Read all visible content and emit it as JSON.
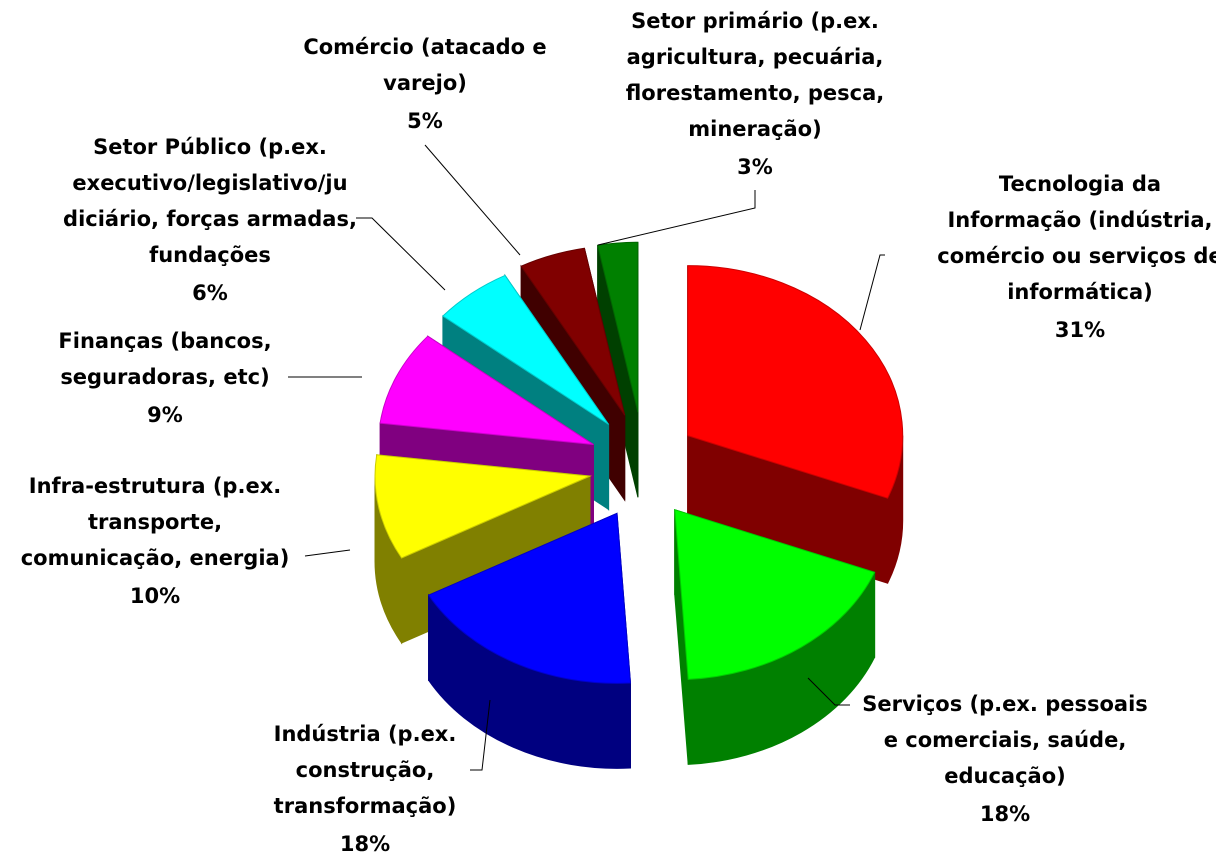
{
  "chart_data": {
    "type": "pie",
    "categories": [
      "Tecnologia da\nInformação (indústria,\ncomércio ou serviços de\ninformática)",
      "Serviços (p.ex. pessoais\ne comerciais, saúde,\neducação)",
      "Indústria (p.ex.\nconstrução,\ntransformação)",
      "Infra-estrutura (p.ex.\ntransporte,\ncomunicação, energia)",
      "Finanças (bancos,\nseguradoras, etc)",
      "Setor Público (p.ex.\nexecutivo/legislativo/ju\ndiciário, forças armadas,\nfundações",
      "Comércio (atacado e\nvarejo)",
      "Setor primário (p.ex.\nagricultura, pecuária,\nflorestamento, pesca,\nmineração)"
    ],
    "values": [
      31,
      18,
      18,
      10,
      9,
      6,
      5,
      3
    ],
    "value_labels": [
      "31%",
      "18%",
      "18%",
      "10%",
      "9%",
      "6%",
      "5%",
      "3%"
    ],
    "colors": [
      "#ff0000",
      "#00ff00",
      "#0000ff",
      "#ffff00",
      "#ff00ff",
      "#00ffff",
      "#800000",
      "#008000"
    ]
  }
}
